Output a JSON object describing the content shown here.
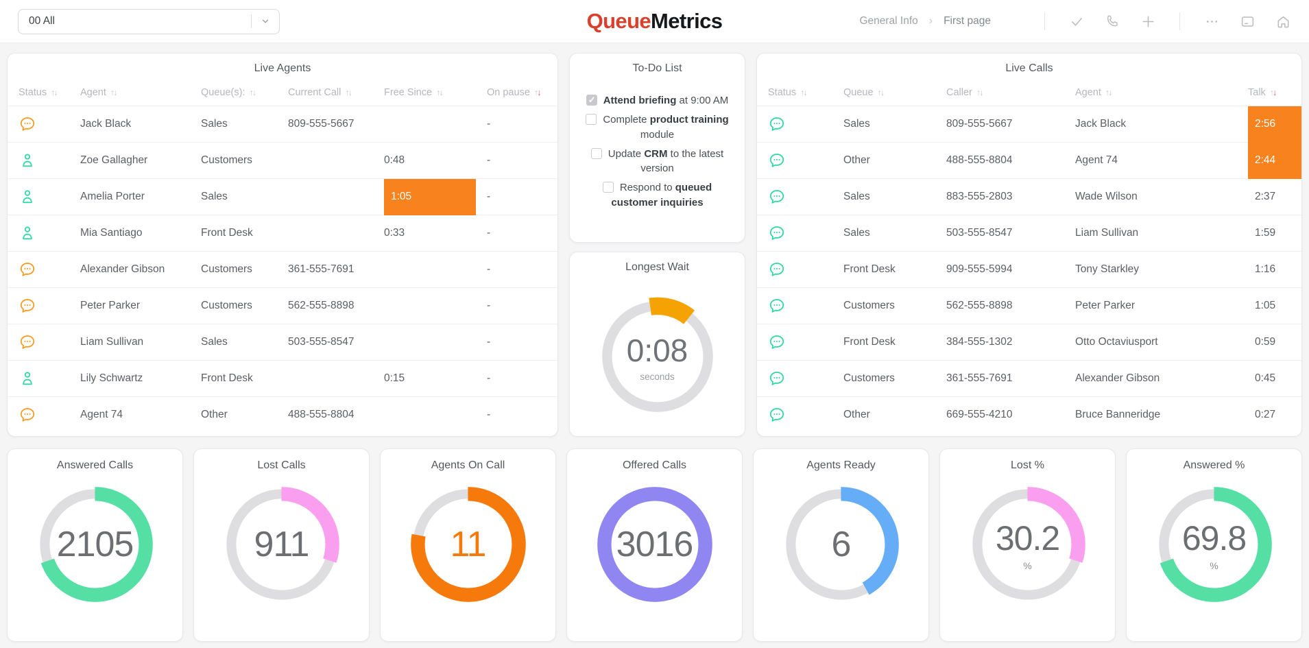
{
  "topbar": {
    "queue_selector": "00 All",
    "logo": {
      "part1": "Queue",
      "part2": "Metrics"
    },
    "breadcrumb": [
      "General Info",
      "First page"
    ],
    "action_icons": [
      "check-icon",
      "phone-icon",
      "plus-icon",
      "ellipsis-icon",
      "folder-icon",
      "home-icon"
    ]
  },
  "colors": {
    "highlight_orange": "#F8821E",
    "icon_orange": "#F79A1F",
    "icon_green": "#2BD99F",
    "mint": "#55DFA4",
    "pink": "#FA9EEF",
    "orange": "#F5790B",
    "purple": "#8F86F2",
    "blue": "#66ADF7",
    "amber": "#F5A302",
    "logo_red": "#D9412C",
    "sort_red": "#F2566F"
  },
  "live_agents": {
    "title": "Live Agents",
    "columns": [
      {
        "label": "Status",
        "sorted": false
      },
      {
        "label": "Agent",
        "sorted": false
      },
      {
        "label": "Queue(s):",
        "sorted": false
      },
      {
        "label": "Current Call",
        "sorted": false
      },
      {
        "label": "Free Since",
        "sorted": false
      },
      {
        "label": "On pause",
        "sorted": true
      }
    ],
    "rows": [
      {
        "status": "chat",
        "agent": "Jack Black",
        "queue": "Sales",
        "current_call": "809-555-5667",
        "free_since": "",
        "on_pause": "-",
        "free_highlight": false
      },
      {
        "status": "person",
        "agent": "Zoe Gallagher",
        "queue": "Customers",
        "current_call": "",
        "free_since": "0:48",
        "on_pause": "-",
        "free_highlight": false
      },
      {
        "status": "person",
        "agent": "Amelia Porter",
        "queue": "Sales",
        "current_call": "",
        "free_since": "1:05",
        "on_pause": "-",
        "free_highlight": true
      },
      {
        "status": "person",
        "agent": "Mia Santiago",
        "queue": "Front Desk",
        "current_call": "",
        "free_since": "0:33",
        "on_pause": "-",
        "free_highlight": false
      },
      {
        "status": "chat",
        "agent": "Alexander Gibson",
        "queue": "Customers",
        "current_call": "361-555-7691",
        "free_since": "",
        "on_pause": "-",
        "free_highlight": false
      },
      {
        "status": "chat",
        "agent": "Peter Parker",
        "queue": "Customers",
        "current_call": "562-555-8898",
        "free_since": "",
        "on_pause": "-",
        "free_highlight": false
      },
      {
        "status": "chat",
        "agent": "Liam Sullivan",
        "queue": "Sales",
        "current_call": "503-555-8547",
        "free_since": "",
        "on_pause": "-",
        "free_highlight": false
      },
      {
        "status": "person",
        "agent": "Lily Schwartz",
        "queue": "Front Desk",
        "current_call": "",
        "free_since": "0:15",
        "on_pause": "-",
        "free_highlight": false
      },
      {
        "status": "chat",
        "agent": "Agent 74",
        "queue": "Other",
        "current_call": "488-555-8804",
        "free_since": "",
        "on_pause": "-",
        "free_highlight": false
      }
    ]
  },
  "todo": {
    "title": "To-Do List",
    "items": [
      {
        "checked": true,
        "segments": [
          {
            "text": "Attend briefing",
            "bold": true
          },
          {
            "text": " at 9:00 AM",
            "bold": false
          }
        ]
      },
      {
        "checked": false,
        "segments": [
          {
            "text": "Complete ",
            "bold": false
          },
          {
            "text": "product training",
            "bold": true
          },
          {
            "text": " module",
            "bold": false
          }
        ]
      },
      {
        "checked": false,
        "segments": [
          {
            "text": "Update ",
            "bold": false
          },
          {
            "text": "CRM",
            "bold": true
          },
          {
            "text": " to the latest version",
            "bold": false
          }
        ]
      },
      {
        "checked": false,
        "segments": [
          {
            "text": "Respond to ",
            "bold": false
          },
          {
            "text": "queued customer inquiries",
            "bold": true
          }
        ]
      }
    ]
  },
  "longest_wait": {
    "title": "Longest Wait",
    "value": "0:08",
    "unit": "seconds",
    "fraction": 0.13,
    "color": "#F5A302"
  },
  "live_calls": {
    "title": "Live Calls",
    "columns": [
      {
        "label": "Status",
        "sorted": false
      },
      {
        "label": "Queue",
        "sorted": false
      },
      {
        "label": "Caller",
        "sorted": false
      },
      {
        "label": "Agent",
        "sorted": false
      },
      {
        "label": "Talk",
        "sorted": true
      }
    ],
    "rows": [
      {
        "status": "chat-green",
        "queue": "Sales",
        "caller": "809-555-5667",
        "agent": "Jack Black",
        "talk": "2:56",
        "talk_highlight": true
      },
      {
        "status": "chat-green",
        "queue": "Other",
        "caller": "488-555-8804",
        "agent": "Agent 74",
        "talk": "2:44",
        "talk_highlight": true
      },
      {
        "status": "chat-green",
        "queue": "Sales",
        "caller": "883-555-2803",
        "agent": "Wade Wilson",
        "talk": "2:37",
        "talk_highlight": false
      },
      {
        "status": "chat-green",
        "queue": "Sales",
        "caller": "503-555-8547",
        "agent": "Liam Sullivan",
        "talk": "1:59",
        "talk_highlight": false
      },
      {
        "status": "chat-green",
        "queue": "Front Desk",
        "caller": "909-555-5994",
        "agent": "Tony Starkley",
        "talk": "1:16",
        "talk_highlight": false
      },
      {
        "status": "chat-green",
        "queue": "Customers",
        "caller": "562-555-8898",
        "agent": "Peter Parker",
        "talk": "1:05",
        "talk_highlight": false
      },
      {
        "status": "chat-green",
        "queue": "Front Desk",
        "caller": "384-555-1302",
        "agent": "Otto Octaviusport",
        "talk": "0:59",
        "talk_highlight": false
      },
      {
        "status": "chat-green",
        "queue": "Customers",
        "caller": "361-555-7691",
        "agent": "Alexander Gibson",
        "talk": "0:45",
        "talk_highlight": false
      },
      {
        "status": "chat-green",
        "queue": "Other",
        "caller": "669-555-4210",
        "agent": "Bruce Banneridge",
        "talk": "0:27",
        "talk_highlight": false
      }
    ]
  },
  "gauges": [
    {
      "title": "Answered Calls",
      "value": "2105",
      "sub": "",
      "fraction": 0.698,
      "color": "#55DFA4",
      "value_color": "#6c6e72"
    },
    {
      "title": "Lost Calls",
      "value": "911",
      "sub": "",
      "fraction": 0.302,
      "color": "#FA9EEF",
      "value_color": "#6c6e72"
    },
    {
      "title": "Agents On Call",
      "value": "11",
      "sub": "",
      "fraction": 0.78,
      "color": "#F5790B",
      "value_color": "#F5790B"
    },
    {
      "title": "Offered Calls",
      "value": "3016",
      "sub": "",
      "fraction": 1.0,
      "color": "#8F86F2",
      "value_color": "#6c6e72"
    },
    {
      "title": "Agents Ready",
      "value": "6",
      "sub": "",
      "fraction": 0.42,
      "color": "#66ADF7",
      "value_color": "#6c6e72"
    },
    {
      "title": "Lost %",
      "value": "30.2",
      "sub": "%",
      "fraction": 0.302,
      "color": "#FA9EEF",
      "value_color": "#6c6e72"
    },
    {
      "title": "Answered %",
      "value": "69.8",
      "sub": "%",
      "fraction": 0.698,
      "color": "#55DFA4",
      "value_color": "#6c6e72"
    }
  ]
}
